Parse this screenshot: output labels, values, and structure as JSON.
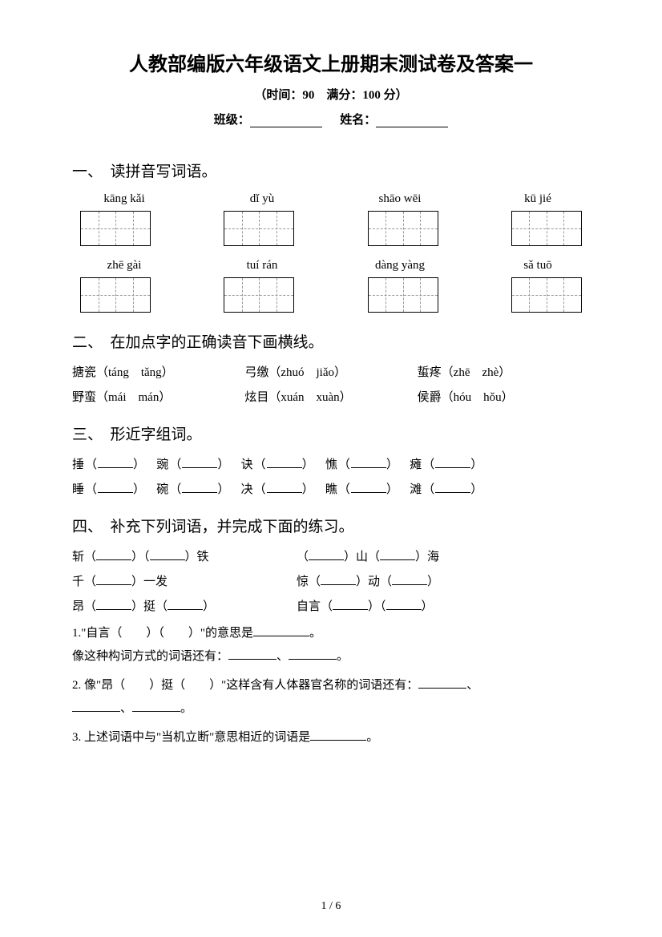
{
  "header": {
    "title": "人教部编版六年级语文上册期末测试卷及答案一",
    "subtitle": "（时间：90　满分：100 分）",
    "class_label": "班级：",
    "name_label": "姓名："
  },
  "section1": {
    "title": "一、　读拼音写词语。",
    "pinyin": [
      [
        "kāng kǎi",
        "dǐ yù",
        "shāo wēi",
        "kū jié"
      ],
      [
        "zhē gài",
        "tuí rán",
        "dàng yàng",
        "sǎ tuō"
      ]
    ]
  },
  "section2": {
    "title": "二、　在加点字的正确读音下画横线。",
    "rows": [
      [
        "搪瓷（táng　tǎng）",
        "弓缴（zhuó　jiǎo）",
        "蜇疼（zhē　zhè）"
      ],
      [
        "野蛮（mái　mán）",
        "炫目（xuán　xuàn）",
        "侯爵（hóu　hǒu）"
      ]
    ]
  },
  "section3": {
    "title": "三、　形近字组词。",
    "rows": [
      [
        "捶",
        "豌",
        "诀",
        "憔",
        "瘫"
      ],
      [
        "睡",
        "碗",
        "决",
        "瞧",
        "滩"
      ]
    ]
  },
  "section4": {
    "title": "四、　补充下列词语，并完成下面的练习。",
    "pairs": [
      {
        "left_pre": "斩（",
        "left_mid": "）（",
        "left_end": "）铁",
        "right_pre": "（",
        "right_mid": "）山（",
        "right_end": "）海"
      },
      {
        "left_pre": "千（",
        "left_mid": "",
        "left_end": "）一发",
        "right_pre": "惊（",
        "right_mid": "）动（",
        "right_end": "）"
      },
      {
        "left_pre": "昂（",
        "left_mid": "）挺（",
        "left_end": "）",
        "right_pre": "自言（",
        "right_mid": "）（",
        "right_end": "）"
      }
    ],
    "sub1_a": "1.\"自言（　　）（　　）\"的意思是",
    "sub1_b": "。",
    "sub1_c": "像这种构词方式的词语还有：",
    "sub1_d": "、",
    "sub1_e": "。",
    "sub2_a": "2. 像\"昂（　　）挺（　　）\"这样含有人体器官名称的词语还有：",
    "sub2_b": "、",
    "sub2_c": "、",
    "sub2_d": "。",
    "sub3_a": "3. 上述词语中与\"当机立断\"意思相近的词语是",
    "sub3_b": "。"
  },
  "footer": {
    "page": "1 / 6"
  }
}
